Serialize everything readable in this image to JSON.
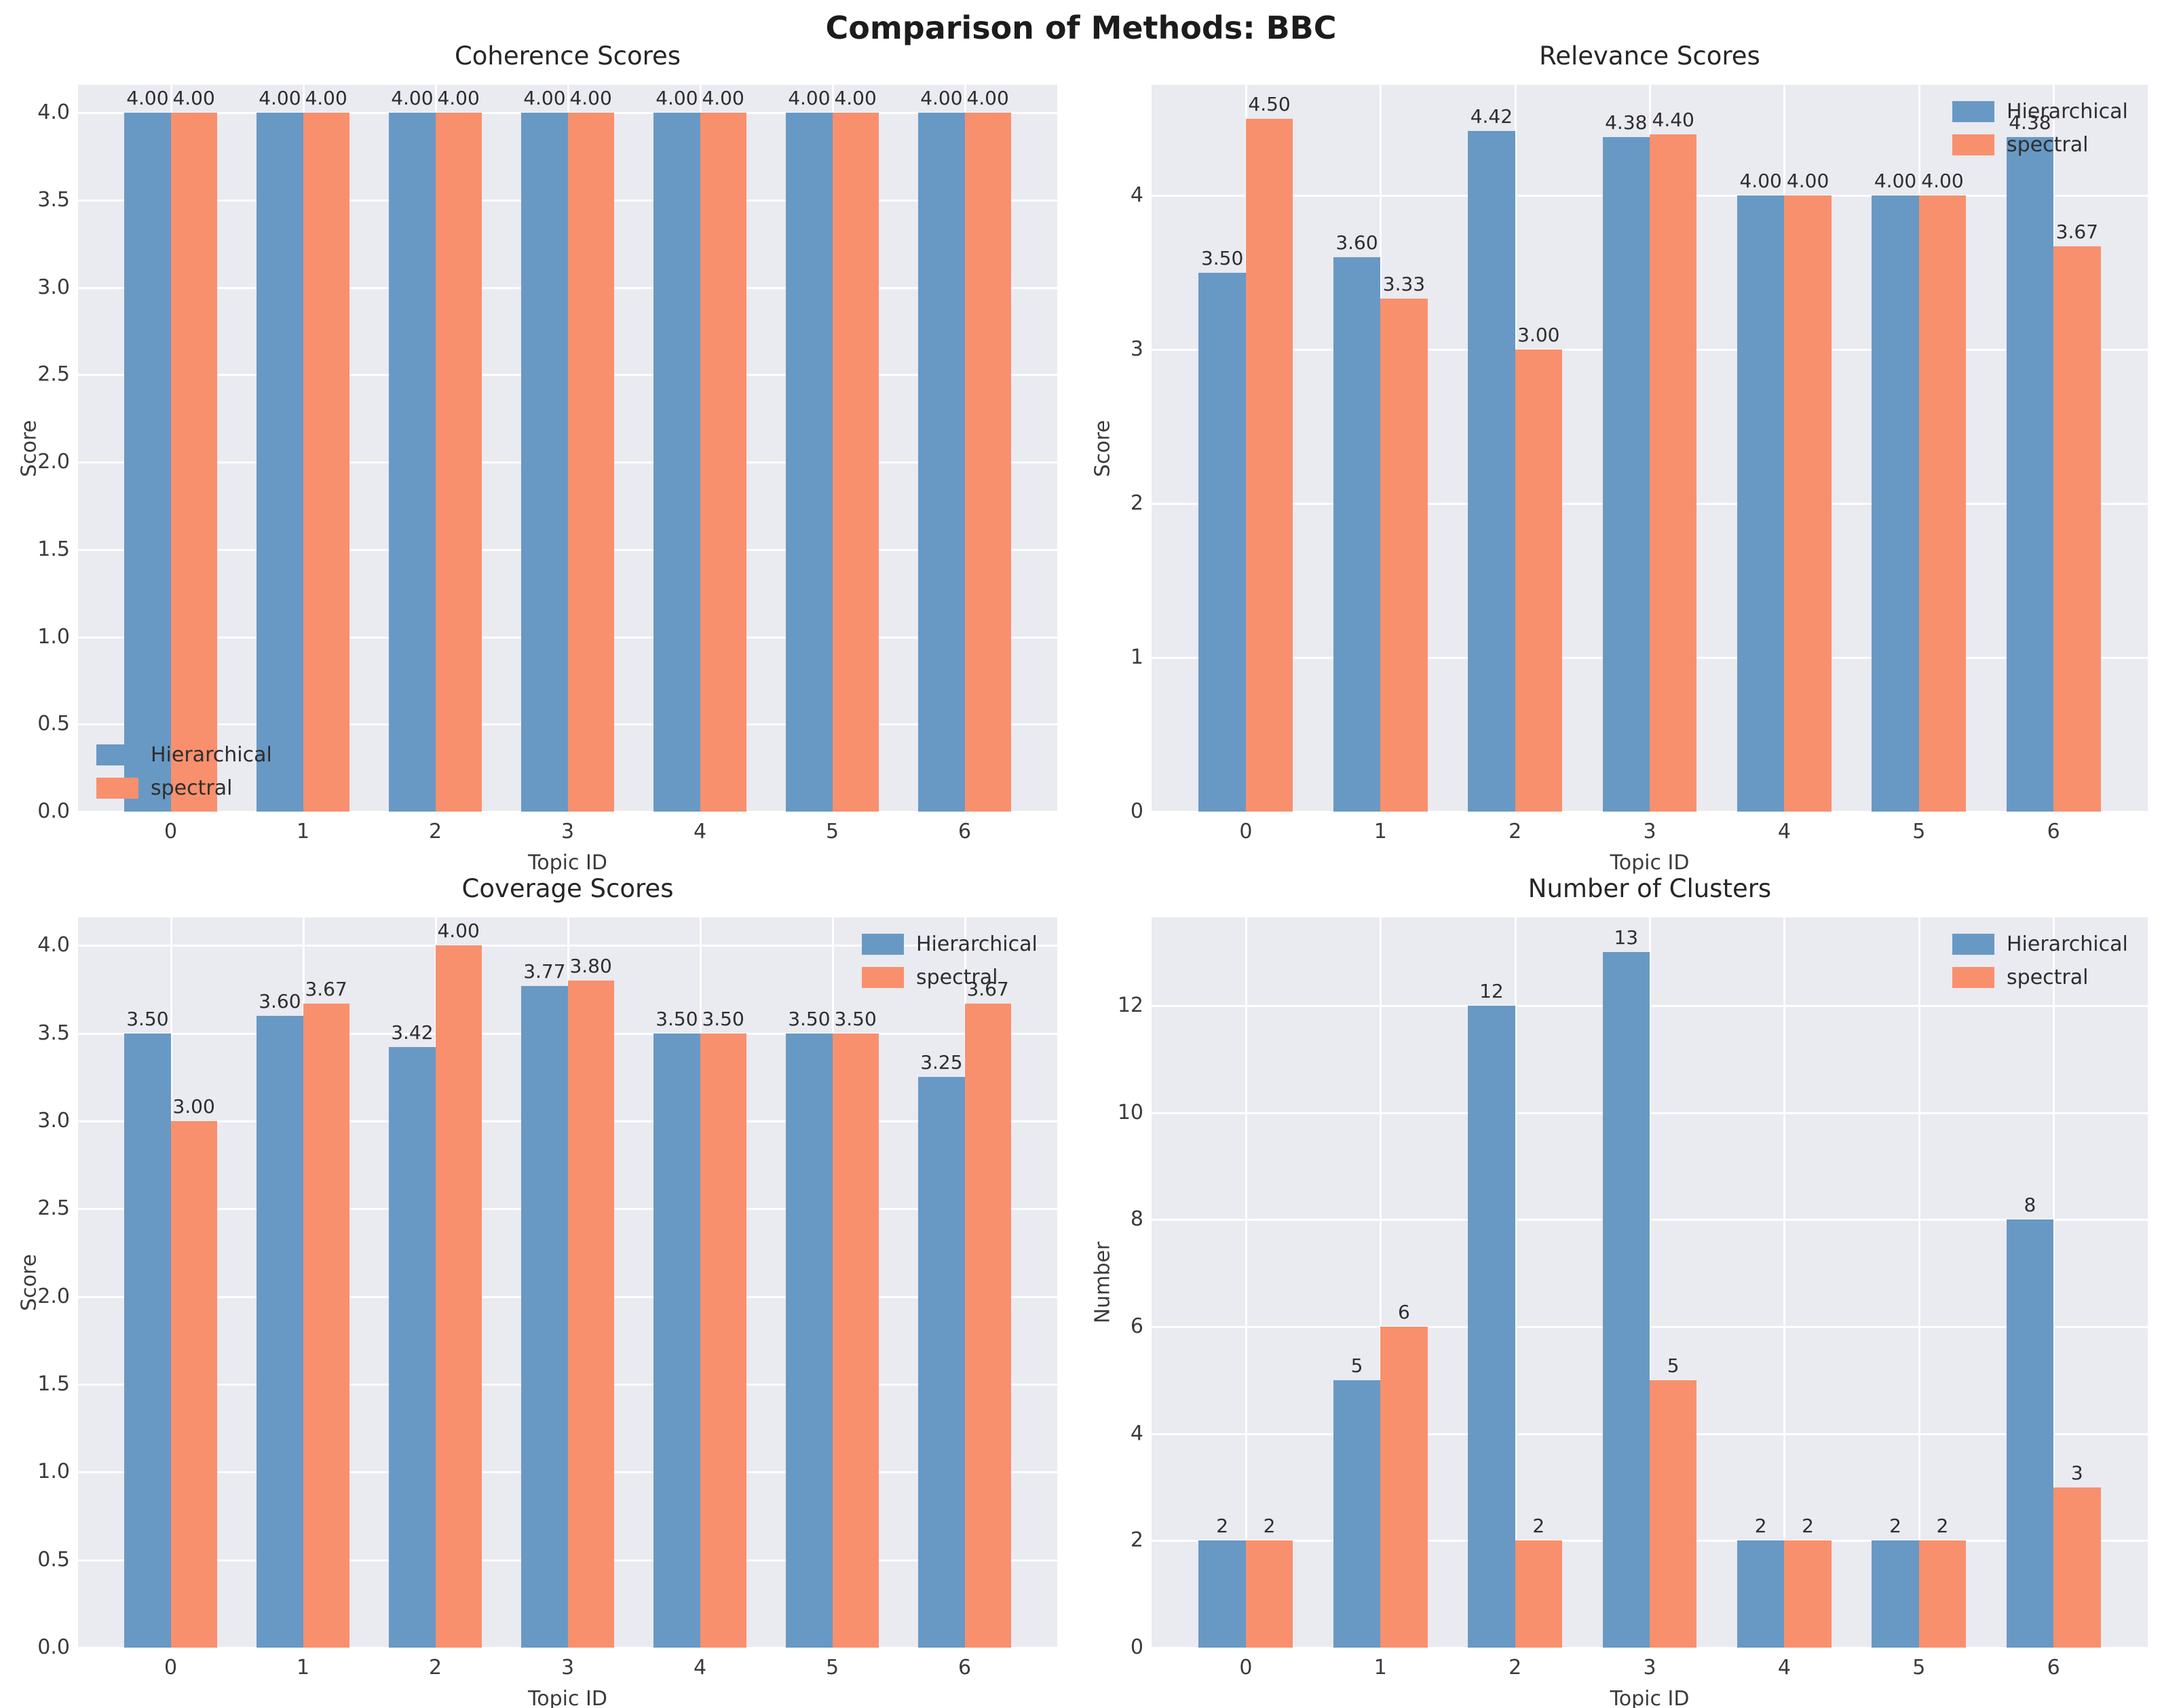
{
  "suptitle": "Comparison of Methods: BBC",
  "colors": {
    "hierarchical": "#6899C4",
    "spectral": "#F8906D",
    "plot_background": "#EAEAF1",
    "gridline": "#FFFFFF",
    "text": "#2e2e2e"
  },
  "legend_labels": [
    "Hierarchical",
    "spectral"
  ],
  "chart_data": [
    {
      "type": "bar",
      "title": "Coherence Scores",
      "xlabel": "Topic ID",
      "ylabel": "Score",
      "categories": [
        "0",
        "1",
        "2",
        "3",
        "4",
        "5",
        "6"
      ],
      "series": [
        {
          "name": "Hierarchical",
          "values": [
            4.0,
            4.0,
            4.0,
            4.0,
            4.0,
            4.0,
            4.0
          ]
        },
        {
          "name": "spectral",
          "values": [
            4.0,
            4.0,
            4.0,
            4.0,
            4.0,
            4.0,
            4.0
          ]
        }
      ],
      "ylim": [
        0,
        4.16
      ],
      "yticks": [
        0,
        0.5,
        1,
        1.5,
        2,
        2.5,
        3,
        3.5,
        4
      ],
      "ytick_decimals": 1,
      "value_decimals": 2,
      "legend_position": "lower-left",
      "grid": true
    },
    {
      "type": "bar",
      "title": "Relevance Scores",
      "xlabel": "Topic ID",
      "ylabel": "Score",
      "categories": [
        "0",
        "1",
        "2",
        "3",
        "4",
        "5",
        "6"
      ],
      "series": [
        {
          "name": "Hierarchical",
          "values": [
            3.5,
            3.6,
            4.42,
            4.38,
            4.0,
            4.0,
            4.38
          ]
        },
        {
          "name": "spectral",
          "values": [
            4.5,
            3.33,
            3.0,
            4.4,
            4.0,
            4.0,
            3.67
          ]
        }
      ],
      "ylim": [
        0,
        4.72
      ],
      "yticks": [
        0,
        1,
        2,
        3,
        4
      ],
      "ytick_decimals": 0,
      "value_decimals": 2,
      "legend_position": "upper-right",
      "grid": true
    },
    {
      "type": "bar",
      "title": "Coverage Scores",
      "xlabel": "Topic ID",
      "ylabel": "Score",
      "categories": [
        "0",
        "1",
        "2",
        "3",
        "4",
        "5",
        "6"
      ],
      "series": [
        {
          "name": "Hierarchical",
          "values": [
            3.5,
            3.6,
            3.42,
            3.77,
            3.5,
            3.5,
            3.25
          ]
        },
        {
          "name": "spectral",
          "values": [
            3.0,
            3.67,
            4.0,
            3.8,
            3.5,
            3.5,
            3.67
          ]
        }
      ],
      "ylim": [
        0,
        4.16
      ],
      "yticks": [
        0,
        0.5,
        1,
        1.5,
        2,
        2.5,
        3,
        3.5,
        4
      ],
      "ytick_decimals": 1,
      "value_decimals": 2,
      "legend_position": "upper-right",
      "grid": true
    },
    {
      "type": "bar",
      "title": "Number of Clusters",
      "xlabel": "Topic ID",
      "ylabel": "Number",
      "categories": [
        "0",
        "1",
        "2",
        "3",
        "4",
        "5",
        "6"
      ],
      "series": [
        {
          "name": "Hierarchical",
          "values": [
            2,
            5,
            12,
            13,
            2,
            2,
            8
          ]
        },
        {
          "name": "spectral",
          "values": [
            2,
            6,
            2,
            5,
            2,
            2,
            3
          ]
        }
      ],
      "ylim": [
        0,
        13.65
      ],
      "yticks": [
        0,
        2,
        4,
        6,
        8,
        10,
        12
      ],
      "ytick_decimals": 0,
      "value_decimals": 0,
      "legend_position": "upper-right",
      "grid": true
    }
  ]
}
